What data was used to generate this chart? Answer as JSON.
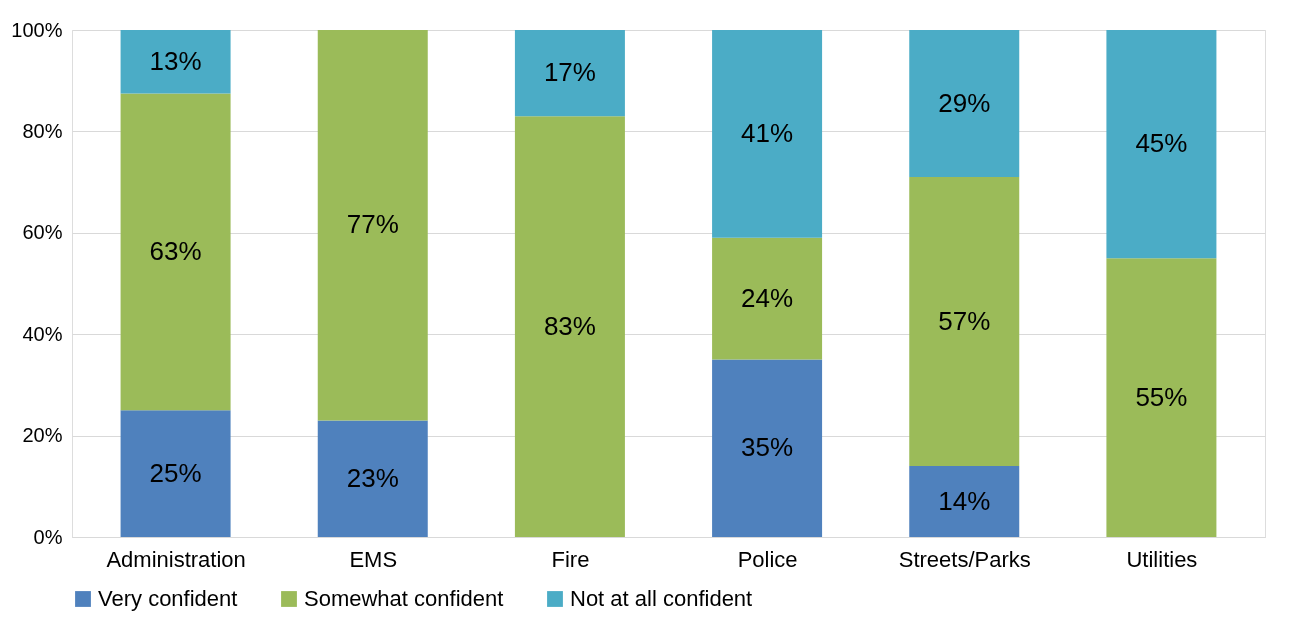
{
  "chart_data": {
    "type": "bar",
    "stacked": true,
    "categories": [
      "Administration",
      "EMS",
      "Fire",
      "Police",
      "Streets/Parks",
      "Utilities"
    ],
    "series": [
      {
        "name": "Very confident",
        "color": "#4f81bd",
        "values": [
          25,
          23,
          null,
          35,
          14,
          null
        ],
        "value_labels": [
          "25%",
          "23%",
          null,
          "35%",
          "14%",
          null
        ]
      },
      {
        "name": "Somewhat confident",
        "color": "#9bbb59",
        "values": [
          62.5,
          77,
          83,
          24,
          57,
          55
        ],
        "value_labels": [
          "63%",
          "77%",
          "83%",
          "24%",
          "57%",
          "55%"
        ]
      },
      {
        "name": "Not at all confident",
        "color": "#4bacc6",
        "values": [
          12.5,
          null,
          17,
          41,
          29,
          45
        ],
        "value_labels": [
          "13%",
          null,
          "17%",
          "41%",
          "29%",
          "45%"
        ]
      }
    ],
    "ylim": [
      0,
      100
    ],
    "yticks": [
      {
        "value": 0,
        "label": "0%"
      },
      {
        "value": 20,
        "label": "20%"
      },
      {
        "value": 40,
        "label": "40%"
      },
      {
        "value": 60,
        "label": "60%"
      },
      {
        "value": 80,
        "label": "80%"
      },
      {
        "value": 100,
        "label": "100%"
      }
    ],
    "grid": "y",
    "legend": "bottom"
  }
}
